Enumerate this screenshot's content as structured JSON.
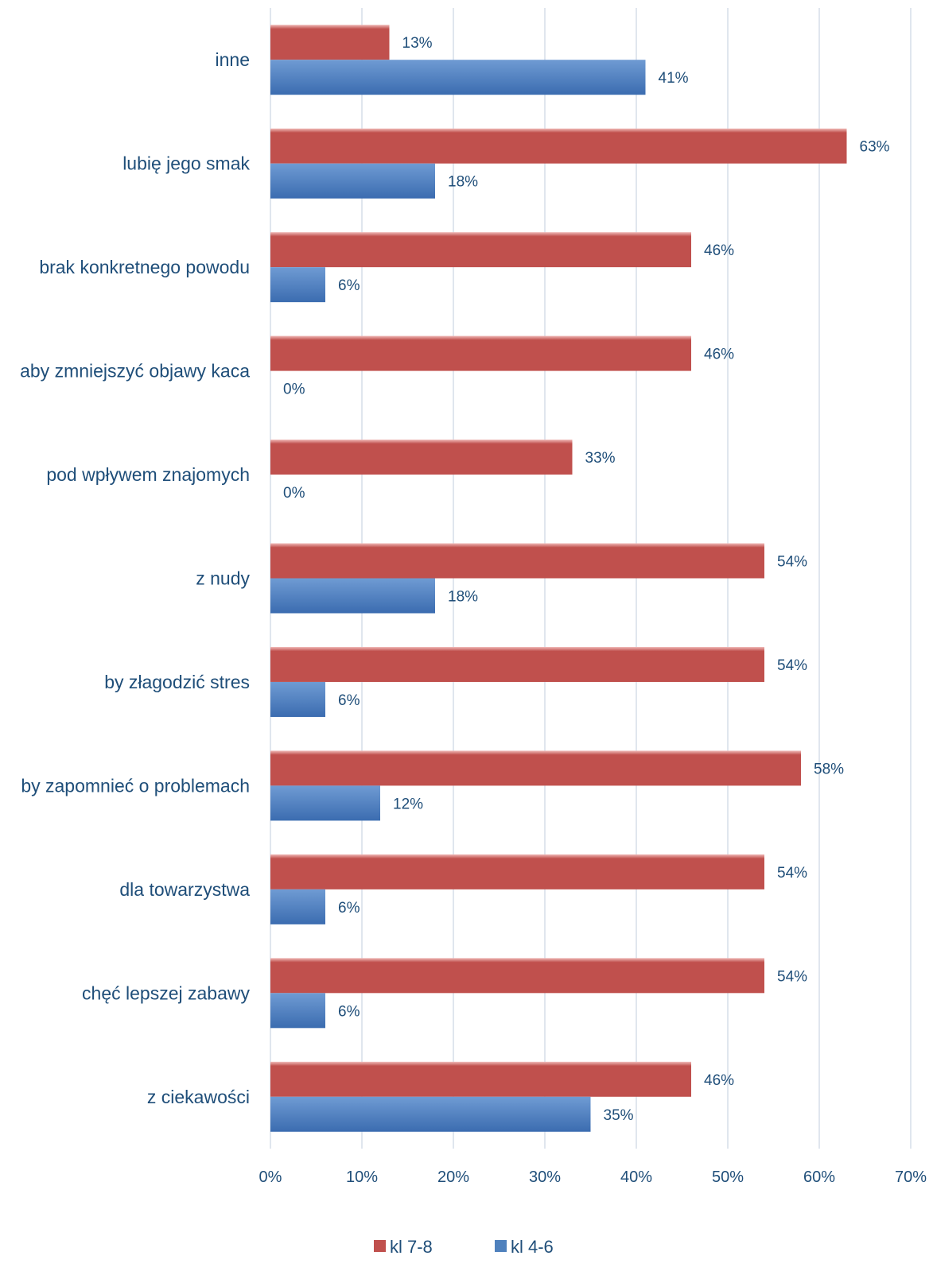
{
  "chart_data": {
    "type": "bar",
    "orientation": "horizontal",
    "title": "",
    "xlabel": "",
    "ylabel": "",
    "xlim": [
      0,
      70
    ],
    "x_ticks": [
      "0%",
      "10%",
      "20%",
      "30%",
      "40%",
      "50%",
      "60%",
      "70%"
    ],
    "grid": true,
    "legend_position": "bottom",
    "value_suffix": "%",
    "categories": [
      "inne",
      "lubię jego smak",
      "brak konkretnego powodu",
      "aby zmniejszyć objawy kaca",
      "pod wpływem znajomych",
      "z nudy",
      "by złagodzić stres",
      "by zapomnieć o problemach",
      "dla towarzystwa",
      "chęć lepszej zabawy",
      "z ciekawości"
    ],
    "series": [
      {
        "name": "kl 7-8",
        "color": "#c0504d",
        "values": [
          13,
          63,
          46,
          46,
          33,
          54,
          54,
          58,
          54,
          54,
          46
        ]
      },
      {
        "name": "kl 4-6",
        "color": "#4f81bd",
        "values": [
          41,
          18,
          6,
          0,
          0,
          18,
          6,
          12,
          6,
          6,
          35
        ]
      }
    ]
  }
}
